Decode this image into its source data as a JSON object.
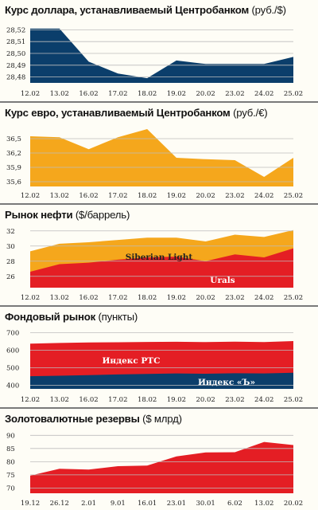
{
  "colors": {
    "navy": "#0b3e6b",
    "orange": "#f5a71c",
    "red": "#e41e24",
    "grid": "#bdbdbd",
    "background": "#fefdf6"
  },
  "chart_data": [
    {
      "id": "usd",
      "type": "area",
      "title_bold": "Курс доллара, устанавливаемый Центробанком",
      "title_unit": "(руб./$)",
      "categories": [
        "12.02",
        "13.02",
        "16.02",
        "17.02",
        "18.02",
        "19.02",
        "20.02",
        "23.02",
        "24.02",
        "25.02"
      ],
      "y_ticks": [
        28.52,
        28.51,
        28.5,
        28.49,
        28.48
      ],
      "y_tick_labels": [
        "28,52",
        "28,51",
        "28,50",
        "28,49",
        "28,48"
      ],
      "ylim": [
        28.475,
        28.525
      ],
      "grid": true,
      "series": [
        {
          "name": "",
          "color": "#0b3e6b",
          "values": [
            28.521,
            28.521,
            28.493,
            28.483,
            28.479,
            28.494,
            28.491,
            28.491,
            28.491,
            28.497
          ]
        }
      ]
    },
    {
      "id": "eur",
      "type": "area",
      "title_bold": "Курс евро, устанавливаемый Центробанком",
      "title_unit": "(руб./€)",
      "categories": [
        "12.02",
        "13.02",
        "16.02",
        "17.02",
        "18.02",
        "19.02",
        "20.02",
        "23.02",
        "24.02",
        "25.02"
      ],
      "y_ticks": [
        36.5,
        36.2,
        35.9,
        35.6
      ],
      "y_tick_labels": [
        "36,5",
        "36,2",
        "35,9",
        "35,6"
      ],
      "ylim": [
        35.5,
        36.75
      ],
      "grid": true,
      "series": [
        {
          "name": "",
          "color": "#f5a71c",
          "values": [
            36.55,
            36.53,
            36.28,
            36.53,
            36.7,
            36.1,
            36.07,
            36.05,
            35.7,
            36.1
          ]
        }
      ]
    },
    {
      "id": "oil",
      "type": "area",
      "title_bold": "Рынок нефти",
      "title_unit": "($/баррель)",
      "categories": [
        "12.02",
        "13.02",
        "16.02",
        "17.02",
        "18.02",
        "19.02",
        "20.02",
        "23.02",
        "24.02",
        "25.02"
      ],
      "y_ticks": [
        32,
        30,
        28,
        26
      ],
      "y_tick_labels": [
        "32",
        "30",
        "28",
        "26"
      ],
      "ylim": [
        24.5,
        32.5
      ],
      "grid": true,
      "series": [
        {
          "name": "Siberian Light",
          "color": "#f5a71c",
          "label_color": "#222222",
          "values": [
            29.3,
            30.3,
            30.5,
            30.8,
            31.1,
            31.1,
            30.6,
            31.5,
            31.2,
            32.1
          ]
        },
        {
          "name": "Urals",
          "color": "#e41e24",
          "label_color": "#ffffff",
          "values": [
            26.6,
            27.6,
            27.8,
            28.2,
            28.5,
            28.6,
            28.0,
            28.9,
            28.5,
            29.7
          ]
        }
      ]
    },
    {
      "id": "stock",
      "type": "area",
      "title_bold": "Фондовый рынок",
      "title_unit": "(пункты)",
      "categories": [
        "12.02",
        "13.02",
        "16.02",
        "17.02",
        "18.02",
        "19.02",
        "20.02",
        "23.02",
        "24.02",
        "25.02"
      ],
      "y_ticks": [
        700,
        600,
        500,
        400
      ],
      "y_tick_labels": [
        "700",
        "600",
        "500",
        "400"
      ],
      "ylim": [
        380,
        720
      ],
      "grid": true,
      "series": [
        {
          "name": "Индекс РТС",
          "color": "#e41e24",
          "label_color": "#ffffff",
          "values": [
            637,
            641,
            644,
            645,
            647,
            648,
            646,
            649,
            646,
            652
          ]
        },
        {
          "name": "Индекс «Ъ»",
          "color": "#0b3e6b",
          "label_color": "#ffffff",
          "values": [
            452,
            455,
            458,
            462,
            465,
            468,
            466,
            469,
            468,
            472
          ]
        }
      ]
    },
    {
      "id": "reserves",
      "type": "area",
      "title_bold": "Золотовалютные резервы",
      "title_unit": "($ млрд)",
      "categories": [
        "19.12",
        "26.12",
        "2.01",
        "9.01",
        "16.01",
        "23.01",
        "30.01",
        "6.02",
        "13.02",
        "20.02"
      ],
      "y_ticks": [
        90,
        85,
        80,
        75,
        70
      ],
      "y_tick_labels": [
        "90",
        "85",
        "80",
        "75",
        "70"
      ],
      "ylim": [
        68,
        91
      ],
      "grid": true,
      "series": [
        {
          "name": "",
          "color": "#e41e24",
          "values": [
            74.7,
            77.3,
            77.0,
            78.3,
            78.5,
            82.0,
            83.5,
            83.6,
            87.5,
            86.3
          ]
        }
      ]
    }
  ]
}
